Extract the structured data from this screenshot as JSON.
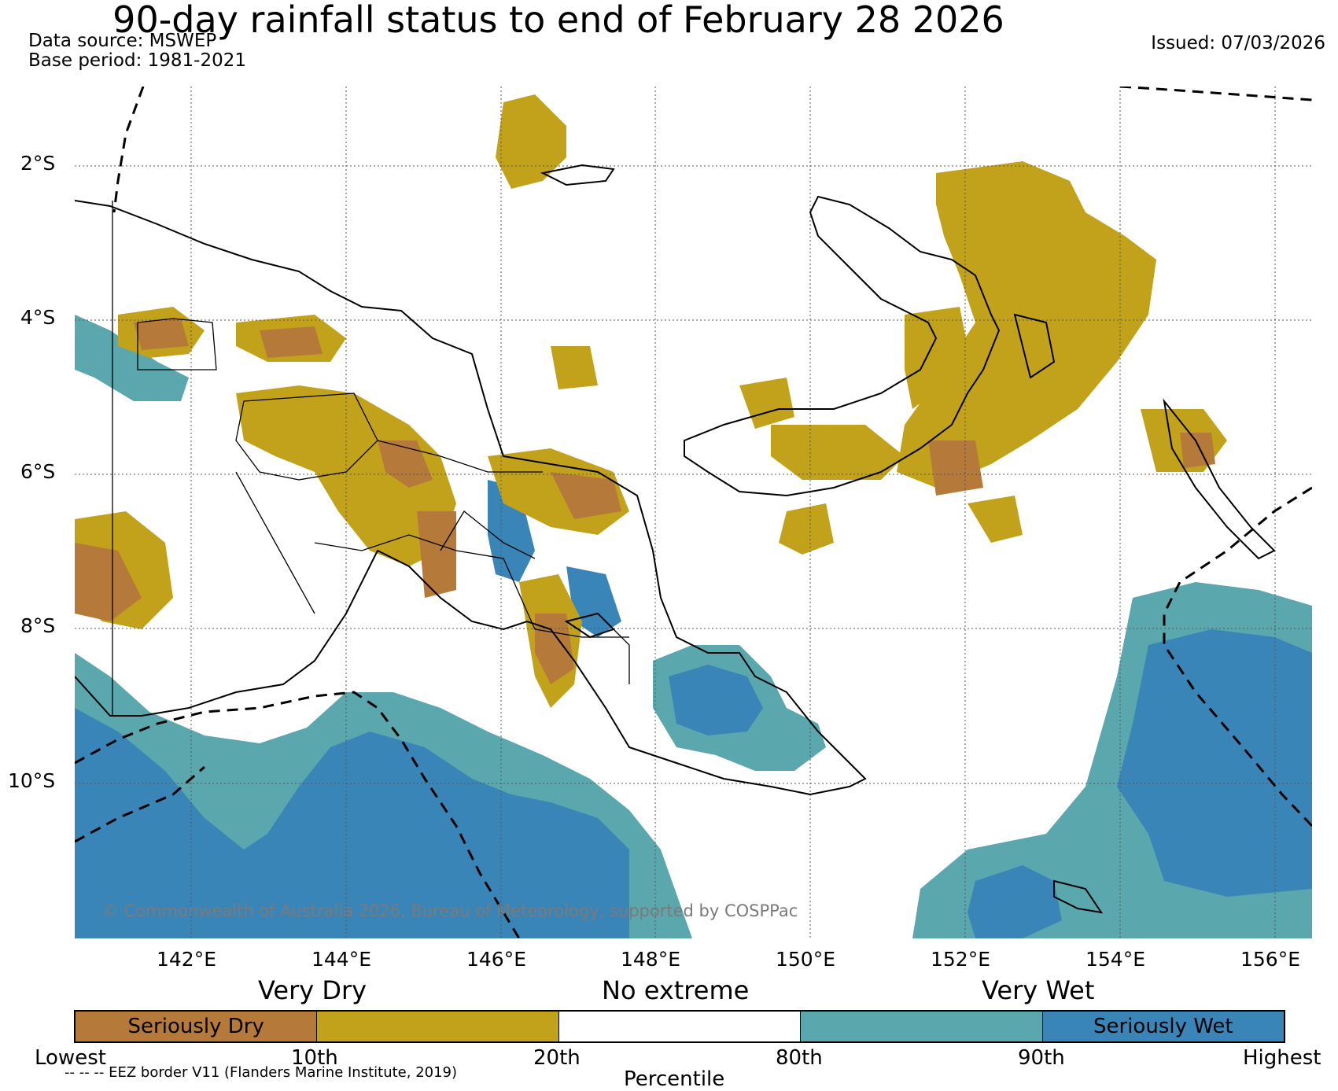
{
  "title": "90-day rainfall status to end of February 28 2026",
  "data_source": "Data source: MSWEP",
  "base_period": "Base period: 1981-2021",
  "issued": "Issued: 07/03/2026",
  "copyright": "© Commonwealth of Australia 2026, Bureau of Meteorology, supported by COSPPac",
  "lat_labels": [
    "2°S",
    "4°S",
    "6°S",
    "8°S",
    "10°S"
  ],
  "lon_labels": [
    "142°E",
    "144°E",
    "146°E",
    "148°E",
    "150°E",
    "152°E",
    "154°E",
    "156°E"
  ],
  "legend": {
    "groups": [
      "Very Dry",
      "No extreme",
      "Very Wet"
    ],
    "categories": [
      {
        "label": "Seriously Dry",
        "color": "#b5793a"
      },
      {
        "label": "",
        "color": "#c3a21b"
      },
      {
        "label": "",
        "color": "#ffffff"
      },
      {
        "label": "",
        "color": "#5aa7ad"
      },
      {
        "label": "Seriously Wet",
        "color": "#3a85b8"
      }
    ],
    "ticks": [
      "Lowest",
      "10th",
      "20th",
      "80th",
      "90th",
      "Highest"
    ],
    "axis_label": "Percentile"
  },
  "eez_note": "-- -- -- EEZ border V11 (Flanders Marine Institute, 2019)"
}
